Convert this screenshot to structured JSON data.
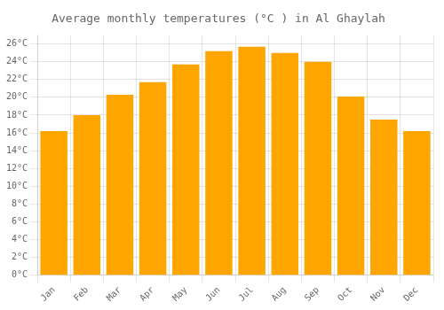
{
  "chart_data": {
    "type": "bar",
    "title": "Average monthly temperatures (°C ) in Al Ghaylah",
    "categories": [
      "Jan",
      "Feb",
      "Mar",
      "Apr",
      "May",
      "Jun",
      "Jul",
      "Aug",
      "Sep",
      "Oct",
      "Nov",
      "Dec"
    ],
    "values": [
      16.2,
      18.0,
      20.3,
      21.7,
      23.7,
      25.2,
      25.7,
      25.0,
      24.0,
      20.1,
      17.5,
      16.2
    ],
    "color": "#FFA500",
    "ylim": [
      0,
      27
    ],
    "yticks": [
      {
        "value": 0,
        "label": "0°C"
      },
      {
        "value": 2,
        "label": "2°C"
      },
      {
        "value": 4,
        "label": "4°C"
      },
      {
        "value": 6,
        "label": "6°C"
      },
      {
        "value": 8,
        "label": "8°C"
      },
      {
        "value": 10,
        "label": "10°C"
      },
      {
        "value": 12,
        "label": "12°C"
      },
      {
        "value": 14,
        "label": "14°C"
      },
      {
        "value": 16,
        "label": "16°C"
      },
      {
        "value": 18,
        "label": "18°C"
      },
      {
        "value": 20,
        "label": "20°C"
      },
      {
        "value": 22,
        "label": "22°C"
      },
      {
        "value": 24,
        "label": "24°C"
      },
      {
        "value": 26,
        "label": "26°C"
      }
    ],
    "grid": true
  }
}
